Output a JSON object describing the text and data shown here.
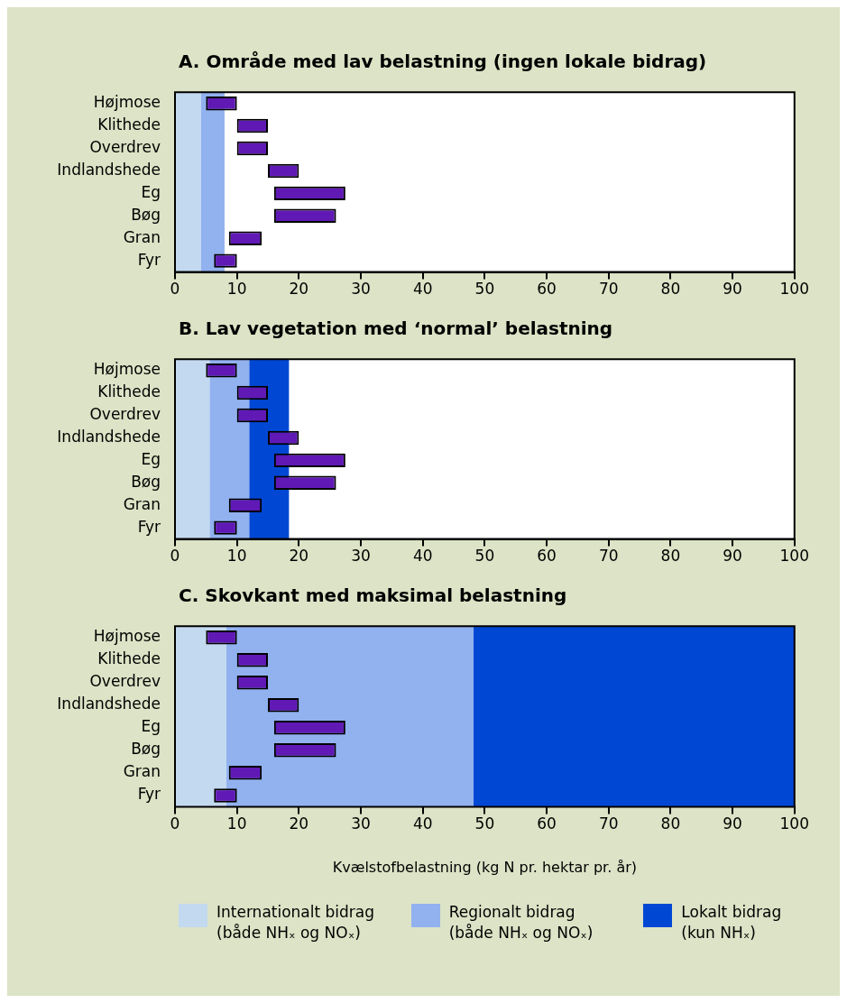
{
  "chart_data": [
    {
      "type": "bar",
      "orientation": "horizontal",
      "title": "A. Område med lav belastning (ingen lokale bidrag)",
      "categories": [
        "Højmose",
        "Klithede",
        "Overdrev",
        "Indlandshede",
        "Eg",
        "Bøg",
        "Gran",
        "Fyr"
      ],
      "base": [
        5,
        10,
        10,
        15,
        16,
        16,
        8.7,
        6.3
      ],
      "values": [
        5,
        5,
        5,
        5,
        11.5,
        10,
        5.3,
        3.7
      ],
      "color": "#6119b6",
      "xlim": [
        0,
        100
      ],
      "xticks": [
        0,
        10,
        20,
        30,
        40,
        50,
        60,
        70,
        80,
        90,
        100
      ],
      "grid": false,
      "legend": false,
      "bands": [
        {
          "axis": "x",
          "from": 0,
          "to": 4.2,
          "color": "#c3d9ef"
        },
        {
          "axis": "x",
          "from": 4.2,
          "to": 8,
          "color": "#92b1ef"
        }
      ]
    },
    {
      "type": "bar",
      "orientation": "horizontal",
      "title": "B. Lav vegetation med ‘normal’ belastning",
      "categories": [
        "Højmose",
        "Klithede",
        "Overdrev",
        "Indlandshede",
        "Eg",
        "Bøg",
        "Gran",
        "Fyr"
      ],
      "base": [
        5,
        10,
        10,
        15,
        16,
        16,
        8.7,
        6.3
      ],
      "values": [
        5,
        5,
        5,
        5,
        11.5,
        10,
        5.3,
        3.7
      ],
      "color": "#6119b6",
      "xlim": [
        0,
        100
      ],
      "xticks": [
        0,
        10,
        20,
        30,
        40,
        50,
        60,
        70,
        80,
        90,
        100
      ],
      "grid": false,
      "legend": false,
      "bands": [
        {
          "axis": "x",
          "from": 0,
          "to": 5.6,
          "color": "#c3d9ef"
        },
        {
          "axis": "x",
          "from": 5.6,
          "to": 12,
          "color": "#92b1ef"
        },
        {
          "axis": "x",
          "from": 12,
          "to": 18.4,
          "color": "#0048d4"
        }
      ]
    },
    {
      "type": "bar",
      "orientation": "horizontal",
      "title": "C. Skovkant med maksimal belastning",
      "xlabel": "Kvælstofbelastning (kg N pr. hektar pr. år)",
      "categories": [
        "Højmose",
        "Klithede",
        "Overdrev",
        "Indlandshede",
        "Eg",
        "Bøg",
        "Gran",
        "Fyr"
      ],
      "base": [
        5,
        10,
        10,
        15,
        16,
        16,
        8.7,
        6.3
      ],
      "values": [
        5,
        5,
        5,
        5,
        11.5,
        10,
        5.3,
        3.7
      ],
      "color": "#6119b6",
      "xlim": [
        0,
        100
      ],
      "xticks": [
        0,
        10,
        20,
        30,
        40,
        50,
        60,
        70,
        80,
        90,
        100
      ],
      "grid": false,
      "legend": "bottom",
      "bands": [
        {
          "axis": "x",
          "from": 0,
          "to": 8.3,
          "color": "#c3d9ef",
          "label": "Internationalt bidrag\n(både NHₓ og NOₓ)"
        },
        {
          "axis": "x",
          "from": 8.3,
          "to": 48.2,
          "color": "#92b1ef",
          "label": "Regionalt bidrag\n(både NHₓ og NOₓ)"
        },
        {
          "axis": "x",
          "from": 48.2,
          "to": 100,
          "color": "#0048d4",
          "label": "Lokalt bidrag\n(kun NHₓ)"
        }
      ]
    }
  ]
}
